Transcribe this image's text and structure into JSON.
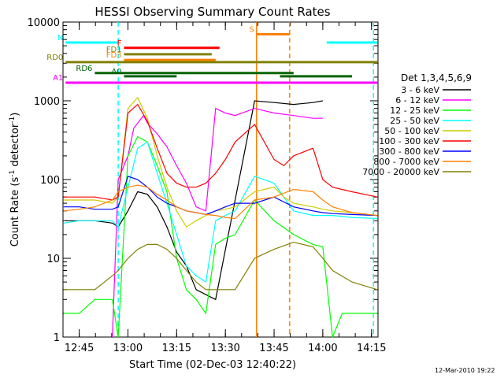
{
  "chart_data": {
    "type": "line",
    "title": "HESSI Observing Summary Count Rates",
    "xlabel": "Start Time (02-Dec-03 12:40:22)",
    "ylabel": "Count Rate (s",
    "ylabel_sup": "-1",
    "ylabel_tail": " detector",
    "ylabel_end": ")",
    "yscale": "log",
    "ylim": [
      1,
      10000
    ],
    "xlim": [
      "12:40",
      "14:17"
    ],
    "x_ticks": [
      "12:45",
      "13:00",
      "13:15",
      "13:30",
      "13:45",
      "14:00",
      "14:15"
    ],
    "y_ticks": [
      "1",
      "10",
      "100",
      "1000",
      "10000"
    ],
    "legend_title": "Det 1,3,4,5,6,9",
    "legend_position": "right",
    "series": [
      {
        "name": "3 - 6 keV",
        "color": "#000000",
        "x": [
          12.68,
          12.83,
          12.92,
          12.95,
          13.0,
          13.05,
          13.1,
          13.15,
          13.2,
          13.25,
          13.3,
          13.35,
          13.45,
          13.65,
          13.75,
          13.85,
          13.95,
          14.0
        ],
        "values": [
          30,
          30,
          28,
          25,
          40,
          70,
          65,
          45,
          25,
          12,
          8,
          4,
          3,
          1000,
          950,
          900,
          950,
          1000
        ]
      },
      {
        "name": "6 - 12 keV",
        "color": "#ff00ff",
        "x": [
          12.92,
          12.95,
          13.0,
          13.03,
          13.08,
          13.1,
          13.15,
          13.2,
          13.25,
          13.3,
          13.35,
          13.4,
          13.45,
          13.5,
          13.55,
          13.65,
          13.75,
          13.85,
          13.95,
          14.0
        ],
        "values": [
          1,
          100,
          200,
          450,
          650,
          520,
          380,
          260,
          150,
          90,
          45,
          40,
          800,
          700,
          650,
          800,
          700,
          650,
          600,
          600
        ]
      },
      {
        "name": "12 - 25 keV",
        "color": "#00ff00",
        "x": [
          12.67,
          12.75,
          12.83,
          12.92,
          12.95,
          13.0,
          13.05,
          13.1,
          13.15,
          13.2,
          13.25,
          13.3,
          13.35,
          13.4,
          13.45,
          13.5,
          13.55,
          13.65,
          13.75,
          13.85,
          13.95,
          14.0,
          14.05,
          14.1,
          14.25,
          14.28
        ],
        "values": [
          2,
          2,
          3,
          3,
          1,
          200,
          350,
          300,
          150,
          70,
          10,
          4,
          3,
          2,
          15,
          18,
          20,
          55,
          30,
          20,
          15,
          14,
          1,
          2,
          2,
          2
        ]
      },
      {
        "name": "25 - 50 keV",
        "color": "#00ffff",
        "x": [
          12.67,
          12.75,
          12.83,
          12.92,
          12.95,
          13.0,
          13.05,
          13.1,
          13.15,
          13.2,
          13.25,
          13.3,
          13.35,
          13.4,
          13.45,
          13.5,
          13.55,
          13.65,
          13.75,
          13.85,
          13.95,
          14.0,
          14.05,
          14.15,
          14.28
        ],
        "values": [
          28,
          30,
          30,
          30,
          25,
          80,
          250,
          300,
          120,
          50,
          20,
          8,
          6,
          5,
          30,
          35,
          40,
          110,
          90,
          40,
          35,
          35,
          35,
          33,
          32
        ]
      },
      {
        "name": "50 - 100 keV",
        "color": "#cccc00",
        "x": [
          12.67,
          12.75,
          12.83,
          12.92,
          12.95,
          13.0,
          13.05,
          13.1,
          13.15,
          13.2,
          13.25,
          13.3,
          13.35,
          13.4,
          13.45,
          13.5,
          13.55,
          13.65,
          13.7,
          13.75,
          13.8,
          13.85,
          13.95,
          14.0,
          14.05,
          14.15,
          14.28
        ],
        "values": [
          55,
          55,
          55,
          50,
          60,
          800,
          1100,
          600,
          200,
          80,
          40,
          25,
          30,
          35,
          40,
          42,
          45,
          70,
          75,
          80,
          60,
          50,
          45,
          42,
          40,
          38,
          35
        ]
      },
      {
        "name": "100 - 300 keV",
        "color": "#ff0000",
        "x": [
          12.67,
          12.75,
          12.83,
          12.92,
          12.95,
          13.0,
          13.05,
          13.1,
          13.15,
          13.2,
          13.25,
          13.3,
          13.35,
          13.4,
          13.45,
          13.5,
          13.55,
          13.65,
          13.7,
          13.75,
          13.8,
          13.85,
          13.95,
          14.0,
          14.05,
          14.15,
          14.28
        ],
        "values": [
          60,
          60,
          60,
          55,
          60,
          700,
          900,
          550,
          250,
          120,
          90,
          80,
          80,
          90,
          120,
          180,
          300,
          500,
          300,
          180,
          150,
          200,
          250,
          100,
          80,
          70,
          60
        ]
      },
      {
        "name": "300 - 800 keV",
        "color": "#0000ff",
        "x": [
          12.67,
          12.75,
          12.83,
          12.92,
          12.95,
          13.0,
          13.05,
          13.1,
          13.15,
          13.2,
          13.25,
          13.3,
          13.35,
          13.4,
          13.45,
          13.5,
          13.55,
          13.65,
          13.75,
          13.85,
          13.95,
          14.0,
          14.05,
          14.15,
          14.28
        ],
        "values": [
          45,
          45,
          42,
          42,
          45,
          110,
          100,
          80,
          60,
          50,
          45,
          40,
          38,
          36,
          40,
          45,
          50,
          50,
          60,
          45,
          40,
          38,
          37,
          36,
          35
        ]
      },
      {
        "name": "800 - 7000 keV",
        "color": "#ff8000",
        "x": [
          12.67,
          12.75,
          12.83,
          12.92,
          12.95,
          13.0,
          13.05,
          13.1,
          13.15,
          13.2,
          13.25,
          13.3,
          13.35,
          13.4,
          13.45,
          13.5,
          13.55,
          13.65,
          13.75,
          13.85,
          13.95,
          14.0,
          14.05,
          14.15,
          14.28
        ],
        "values": [
          40,
          42,
          45,
          55,
          70,
          80,
          85,
          80,
          65,
          55,
          45,
          40,
          38,
          36,
          35,
          33,
          32,
          55,
          60,
          75,
          70,
          55,
          45,
          38,
          35
        ]
      },
      {
        "name": "7000 - 20000 keV",
        "color": "#808000",
        "x": [
          12.67,
          12.75,
          12.83,
          12.92,
          12.95,
          13.0,
          13.05,
          13.1,
          13.15,
          13.2,
          13.25,
          13.3,
          13.35,
          13.4,
          13.45,
          13.5,
          13.55,
          13.65,
          13.75,
          13.85,
          13.95,
          14.0,
          14.05,
          14.15,
          14.28
        ],
        "values": [
          4,
          4,
          4,
          6,
          7,
          10,
          13,
          15,
          15,
          13,
          10,
          7,
          5,
          4,
          4,
          4,
          4,
          10,
          13,
          16,
          14,
          10,
          7,
          5,
          4
        ]
      }
    ],
    "flag_bars": [
      {
        "label": "N",
        "color": "#00ffff",
        "segments": [
          [
            12.68,
            12.95
          ],
          [
            14.02,
            14.28
          ]
        ],
        "level": 5500
      },
      {
        "label": "F",
        "color": "#ff0000",
        "segments": [
          [
            12.98,
            13.47
          ]
        ],
        "level": 4700
      },
      {
        "label": "FD1",
        "color": "#808000",
        "segments": [
          [
            12.98,
            13.43
          ]
        ],
        "level": 3900
      },
      {
        "label": "FD3",
        "color": "#ff8000",
        "segments": [
          [
            12.98,
            13.45
          ]
        ],
        "level": 3300
      },
      {
        "label": "RD0",
        "color": "#808000",
        "segments": [
          [
            12.68,
            14.28
          ]
        ],
        "level": 3100
      },
      {
        "label": "RD6",
        "color": "#006400",
        "segments": [
          [
            12.83,
            13.85
          ]
        ],
        "level": 2250
      },
      {
        "label": "A0",
        "color": "#006400",
        "segments": [
          [
            12.98,
            13.25
          ],
          [
            13.78,
            14.15
          ]
        ],
        "level": 2050
      },
      {
        "label": "A1",
        "color": "#ff00ff",
        "segments": [
          [
            12.68,
            14.28
          ]
        ],
        "level": 1700
      },
      {
        "label": "S",
        "color": "#ff8000",
        "segments": [
          [
            13.66,
            13.83
          ]
        ],
        "level": 7000
      }
    ],
    "vertical_markers": [
      {
        "color": "#00ffff",
        "x": 12.95,
        "style": "dashed"
      },
      {
        "color": "#00ffff",
        "x": 14.26,
        "style": "dashed"
      },
      {
        "color": "#ff8000",
        "x": 13.66,
        "style": "solid"
      },
      {
        "color": "#ff8000",
        "x": 13.83,
        "style": "dashed"
      }
    ]
  },
  "footer": {
    "date_stamp": "12-Mar-2010 19:22"
  }
}
